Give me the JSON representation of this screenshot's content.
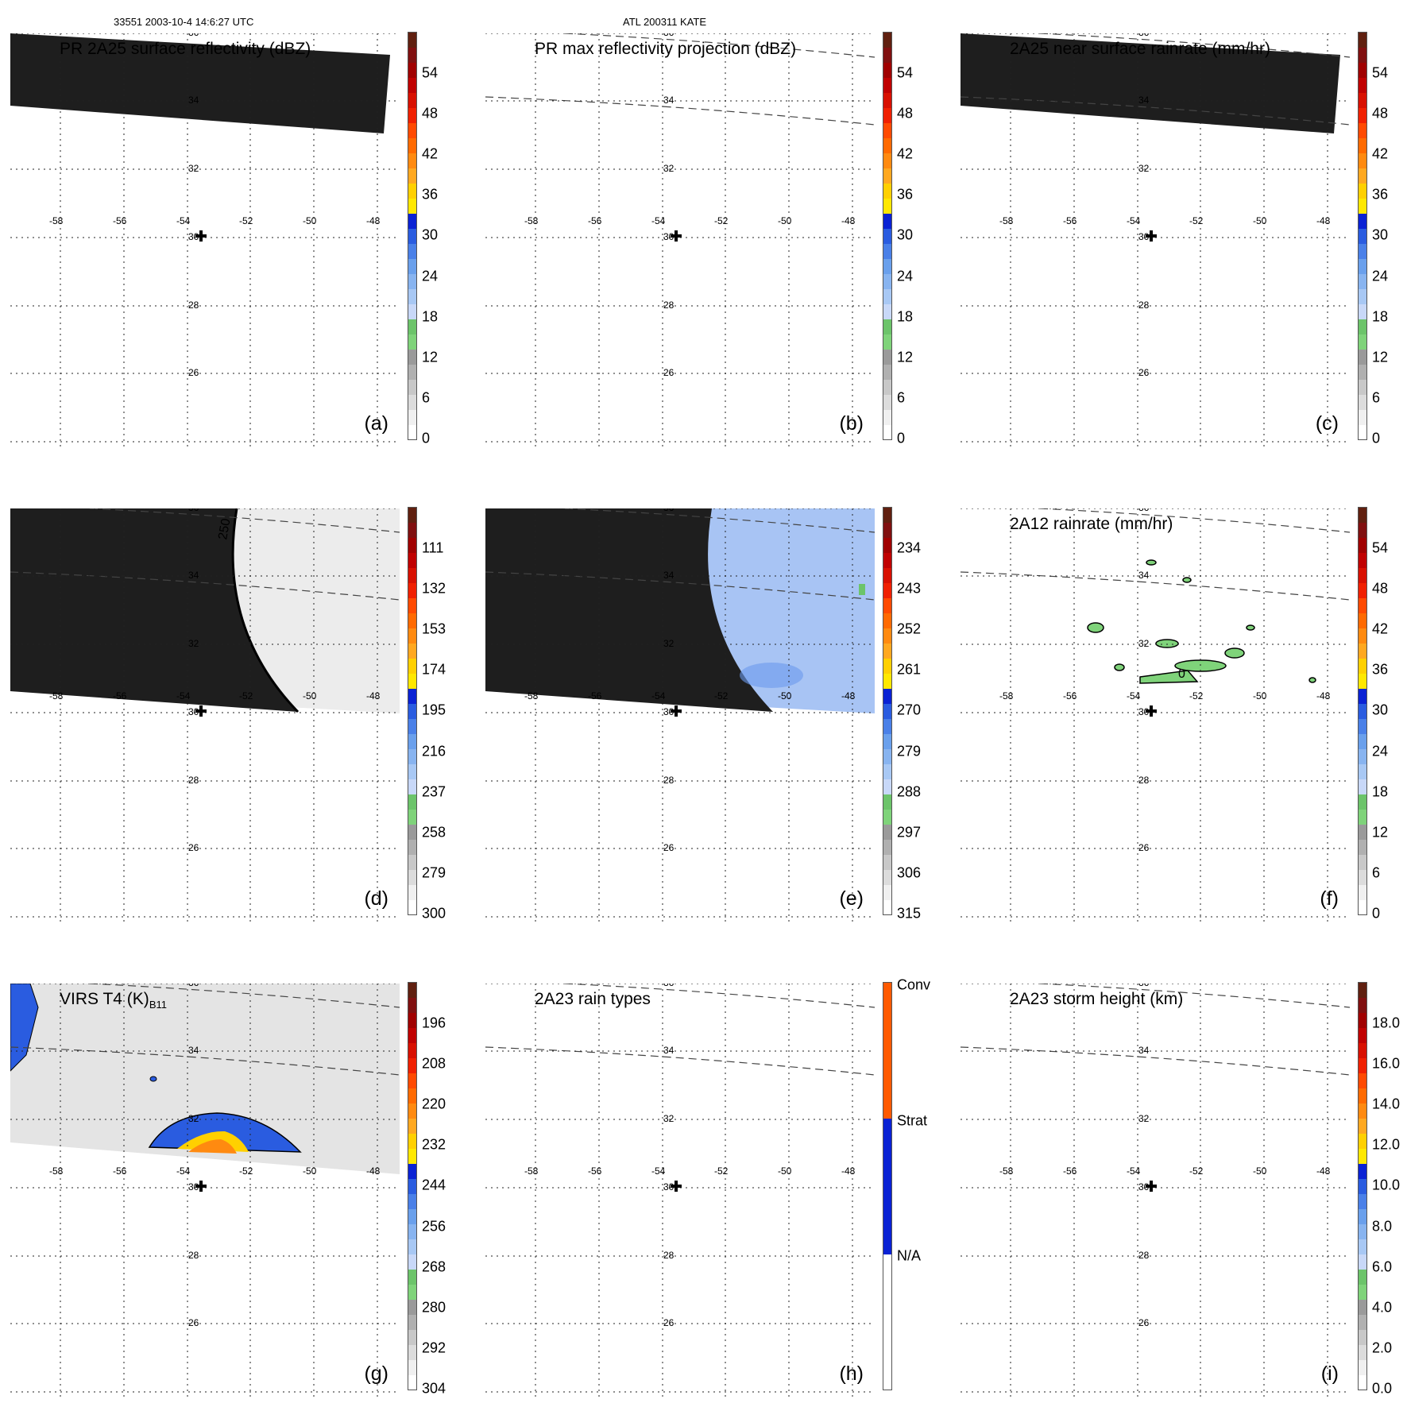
{
  "header": {
    "left": "33551 2003-10-4 14:6:27 UTC",
    "center": "ATL 200311 KATE"
  },
  "map": {
    "lon_labels": [
      "-58",
      "-56",
      "-54",
      "-52",
      "-50",
      "-48"
    ],
    "lat_labels": [
      "36",
      "34",
      "32",
      "30",
      "28",
      "26"
    ],
    "center_marker": "storm-center-cross"
  },
  "colorbar_colors": {
    "reflectivity": [
      "#ffffff",
      "#f0f0f0",
      "#dcdcdc",
      "#c8c8c8",
      "#b0b0b0",
      "#9a9a9a",
      "#7fd37a",
      "#6cc46a",
      "#c8d8f8",
      "#a8c8f4",
      "#88b4f0",
      "#6aa0ec",
      "#4a80e8",
      "#2a5ce0",
      "#0a22d4",
      "#ffe800",
      "#ffd000",
      "#ffa820",
      "#ff8a10",
      "#ff6a00",
      "#ff4a00",
      "#f02000",
      "#d81000",
      "#c00000",
      "#a00000",
      "#801010",
      "#602010"
    ],
    "rain_types": [
      "#ffffff",
      "#0a22d4",
      "#ff5a00"
    ]
  },
  "panels": [
    {
      "id": "a",
      "letter": "(a)",
      "title": "PR 2A25 surface reflectivity (dBZ)",
      "colorbar_ticks": [
        "54",
        "48",
        "42",
        "36",
        "30",
        "24",
        "18",
        "12",
        "6",
        "0"
      ],
      "swath": "pr-dark"
    },
    {
      "id": "b",
      "letter": "(b)",
      "title": "PR max reflectivity projection (dBZ)",
      "colorbar_ticks": [
        "54",
        "48",
        "42",
        "36",
        "30",
        "24",
        "18",
        "12",
        "6",
        "0"
      ],
      "swath": "none"
    },
    {
      "id": "c",
      "letter": "(c)",
      "title": "2A25 near surface rainrate (mm/hr)",
      "colorbar_ticks": [
        "54",
        "48",
        "42",
        "36",
        "30",
        "24",
        "18",
        "12",
        "6",
        "0"
      ],
      "swath": "pr-dark"
    },
    {
      "id": "d",
      "letter": "(d)",
      "title": "",
      "colorbar_ticks": [
        "111",
        "132",
        "153",
        "174",
        "195",
        "216",
        "237",
        "258",
        "279",
        "300"
      ],
      "swath": "tmi-gray",
      "contour_label": "250"
    },
    {
      "id": "e",
      "letter": "(e)",
      "title": "",
      "colorbar_ticks": [
        "234",
        "243",
        "252",
        "261",
        "270",
        "279",
        "288",
        "297",
        "306",
        "315"
      ],
      "swath": "tmi-blue"
    },
    {
      "id": "f",
      "letter": "(f)",
      "title": "2A12 rainrate (mm/hr)",
      "colorbar_ticks": [
        "54",
        "48",
        "42",
        "36",
        "30",
        "24",
        "18",
        "12",
        "6",
        "0"
      ],
      "swath": "rain-cells",
      "contour_label": "0"
    },
    {
      "id": "g",
      "letter": "(g)",
      "title": "VIRS T4  (K)",
      "title_subscript": "B11",
      "colorbar_ticks": [
        "196",
        "208",
        "220",
        "232",
        "244",
        "256",
        "268",
        "280",
        "292",
        "304"
      ],
      "swath": "virs"
    },
    {
      "id": "h",
      "letter": "(h)",
      "title": "2A23 rain types",
      "colorbar_ticks": [
        "Conv",
        "Strat",
        "N/A"
      ],
      "swath": "none"
    },
    {
      "id": "i",
      "letter": "(i)",
      "title": "2A23 storm height (km)",
      "colorbar_ticks": [
        "18.0",
        "16.0",
        "14.0",
        "12.0",
        "10.0",
        "8.0",
        "6.0",
        "4.0",
        "2.0",
        "0.0"
      ],
      "swath": "none"
    }
  ]
}
